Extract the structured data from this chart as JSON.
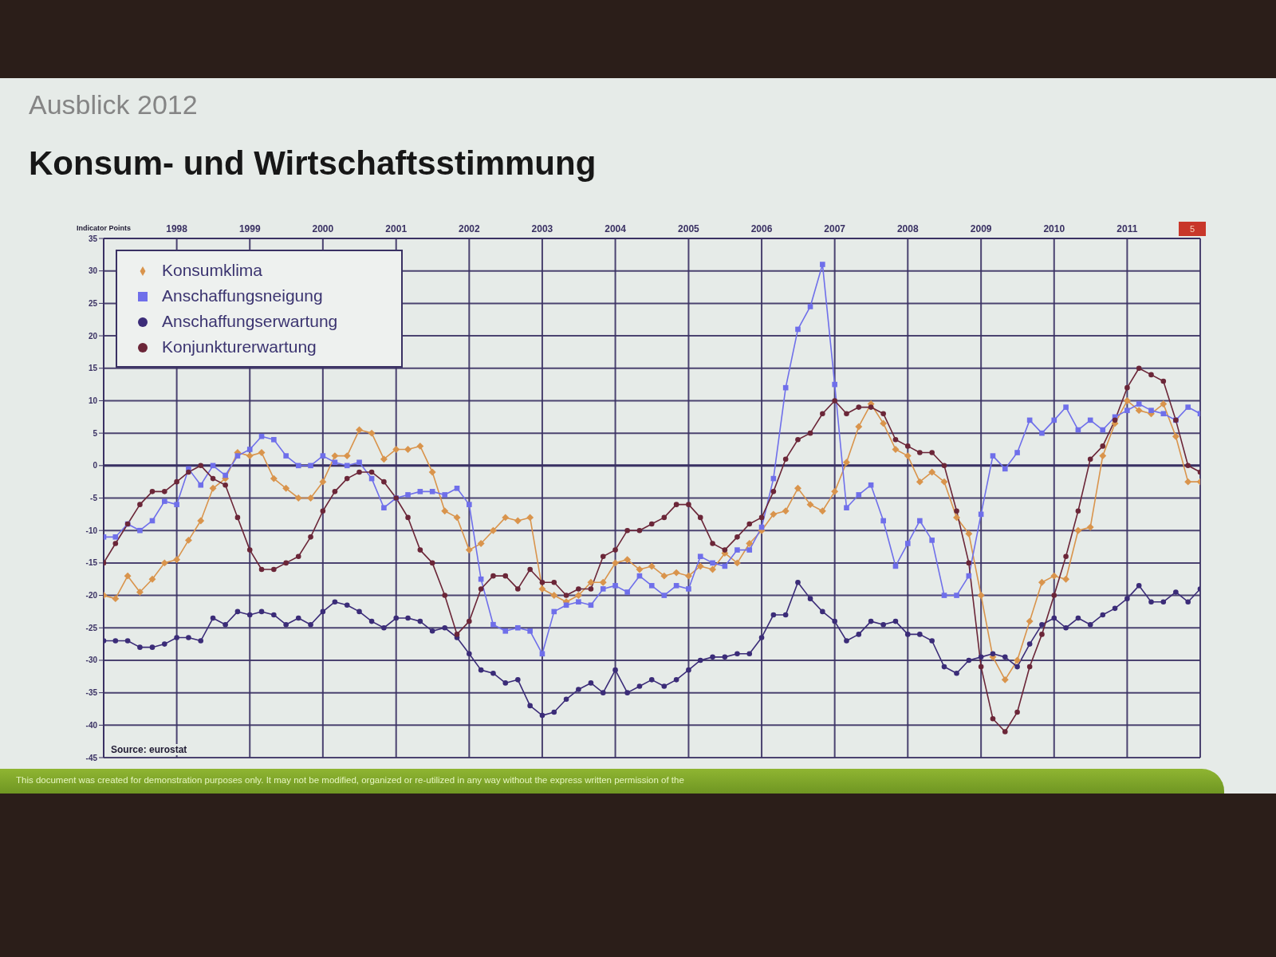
{
  "chart_data": {
    "type": "line",
    "title": "Konsum- und Wirtschaftsstimmung",
    "subtitle": "Ausblick 2012",
    "ylabel": "Indicator Points",
    "x": [
      "1997-01",
      "1997-03",
      "1997-05",
      "1997-07",
      "1997-09",
      "1997-11",
      "1998-01",
      "1998-03",
      "1998-05",
      "1998-07",
      "1998-09",
      "1998-11",
      "1999-01",
      "1999-03",
      "1999-05",
      "1999-07",
      "1999-09",
      "1999-11",
      "2000-01",
      "2000-03",
      "2000-05",
      "2000-07",
      "2000-09",
      "2000-11",
      "2001-01",
      "2001-03",
      "2001-05",
      "2001-07",
      "2001-09",
      "2001-11",
      "2002-01",
      "2002-03",
      "2002-05",
      "2002-07",
      "2002-09",
      "2002-11",
      "2003-01",
      "2003-03",
      "2003-05",
      "2003-07",
      "2003-09",
      "2003-11",
      "2004-01",
      "2004-03",
      "2004-05",
      "2004-07",
      "2004-09",
      "2004-11",
      "2005-01",
      "2005-03",
      "2005-05",
      "2005-07",
      "2005-09",
      "2005-11",
      "2006-01",
      "2006-03",
      "2006-05",
      "2006-07",
      "2006-09",
      "2006-11",
      "2007-01",
      "2007-03",
      "2007-05",
      "2007-07",
      "2007-09",
      "2007-11",
      "2008-01",
      "2008-03",
      "2008-05",
      "2008-07",
      "2008-09",
      "2008-11",
      "2009-01",
      "2009-03",
      "2009-05",
      "2009-07",
      "2009-09",
      "2009-11",
      "2010-01",
      "2010-03",
      "2010-05",
      "2010-07",
      "2010-09",
      "2010-11",
      "2011-01",
      "2011-03",
      "2011-05",
      "2011-07",
      "2011-09",
      "2011-11",
      "2012-01"
    ],
    "series": [
      {
        "name": "Konsumklima",
        "color": "#d9944c",
        "marker": "diamond",
        "values": [
          -20,
          -20.5,
          -17,
          -19.5,
          -17.5,
          -15,
          -14.5,
          -11.5,
          -8.5,
          -3.5,
          -2,
          2,
          1.5,
          2,
          -2,
          -3.5,
          -5,
          -5,
          -2.5,
          1.5,
          1.5,
          5.5,
          5,
          1,
          2.5,
          2.5,
          3,
          -1,
          -7,
          -8,
          -13,
          -12,
          -10,
          -8,
          -8.5,
          -8,
          -19,
          -20,
          -21,
          -20,
          -18,
          -18,
          -15,
          -14.5,
          -16,
          -15.5,
          -17,
          -16.5,
          -17,
          -15.5,
          -16,
          -13.5,
          -15,
          -12,
          -10,
          -7.5,
          -7,
          -3.5,
          -6,
          -7,
          -4,
          0.5,
          6,
          9.5,
          6.5,
          2.5,
          1.5,
          -2.5,
          -1,
          -2.5,
          -8,
          -10.5,
          -20,
          -29.5,
          -33,
          -30,
          -24,
          -18,
          -17,
          -17.5,
          -10,
          -9.5,
          1.5,
          6.5,
          10,
          8.5,
          8,
          9.5,
          4.5,
          -2.5,
          -2.5
        ]
      },
      {
        "name": "Anschaffungsneigung",
        "color": "#6f6fea",
        "marker": "square",
        "values": [
          -11,
          -11,
          -9,
          -10,
          -8.5,
          -5.5,
          -6,
          -0.5,
          -3,
          0,
          -1.5,
          1.5,
          2.5,
          4.5,
          4,
          1.5,
          0,
          0,
          1.5,
          0.5,
          0,
          0.5,
          -2,
          -6.5,
          -5,
          -4.5,
          -4,
          -4,
          -4.5,
          -3.5,
          -6,
          -17.5,
          -24.5,
          -25.5,
          -25,
          -25.5,
          -29,
          -22.5,
          -21.5,
          -21,
          -21.5,
          -19,
          -18.5,
          -19.5,
          -17,
          -18.5,
          -20,
          -18.5,
          -19,
          -14,
          -15,
          -15.5,
          -13,
          -13,
          -9.5,
          -2,
          12,
          21,
          24.5,
          31,
          12.5,
          -6.5,
          -4.5,
          -3,
          -8.5,
          -15.5,
          -12,
          -8.5,
          -11.5,
          -20,
          -20,
          -17,
          -7.5,
          1.5,
          -0.5,
          2,
          7,
          5,
          7,
          9,
          5.5,
          7,
          5.5,
          7.5,
          8.5,
          9.5,
          8.5,
          8,
          7,
          9,
          8
        ]
      },
      {
        "name": "Anschaffungserwartung",
        "color": "#3b2c78",
        "marker": "circle",
        "values": [
          -27,
          -27,
          -27,
          -28,
          -28,
          -27.5,
          -26.5,
          -26.5,
          -27,
          -23.5,
          -24.5,
          -22.5,
          -23,
          -22.5,
          -23,
          -24.5,
          -23.5,
          -24.5,
          -22.5,
          -21,
          -21.5,
          -22.5,
          -24,
          -25,
          -23.5,
          -23.5,
          -24,
          -25.5,
          -25,
          -26.5,
          -29,
          -31.5,
          -32,
          -33.5,
          -33,
          -37,
          -38.5,
          -38,
          -36,
          -34.5,
          -33.5,
          -35,
          -31.5,
          -35,
          -34,
          -33,
          -34,
          -33,
          -31.5,
          -30,
          -29.5,
          -29.5,
          -29,
          -29,
          -26.5,
          -23,
          -23,
          -18,
          -20.5,
          -22.5,
          -24,
          -27,
          -26,
          -24,
          -24.5,
          -24,
          -26,
          -26,
          -27,
          -31,
          -32,
          -30,
          -29.5,
          -29,
          -29.5,
          -31,
          -27.5,
          -24.5,
          -23.5,
          -25,
          -23.5,
          -24.5,
          -23,
          -22,
          -20.5,
          -18.5,
          -21,
          -21,
          -19.5,
          -21,
          -19
        ]
      },
      {
        "name": "Konjunkturerwartung",
        "color": "#6b2638",
        "marker": "circle",
        "values": [
          -15,
          -12,
          -9,
          -6,
          -4,
          -4,
          -2.5,
          -1,
          0,
          -2,
          -3,
          -8,
          -13,
          -16,
          -16,
          -15,
          -14,
          -11,
          -7,
          -4,
          -2,
          -1,
          -1,
          -2.5,
          -5,
          -8,
          -13,
          -15,
          -20,
          -26,
          -24,
          -19,
          -17,
          -17,
          -19,
          -16,
          -18,
          -18,
          -20,
          -19,
          -19,
          -14,
          -13,
          -10,
          -10,
          -9,
          -8,
          -6,
          -6,
          -8,
          -12,
          -13,
          -11,
          -9,
          -8,
          -4,
          1,
          4,
          5,
          8,
          10,
          8,
          9,
          9,
          8,
          4,
          3,
          2,
          2,
          0,
          -7,
          -15,
          -31,
          -39,
          -41,
          -38,
          -31,
          -26,
          -20,
          -14,
          -7,
          1,
          3,
          7,
          12,
          15,
          14,
          13,
          7,
          0,
          -1
        ]
      }
    ],
    "xlim": [
      "1997-01",
      "2012-01"
    ],
    "xticks": [
      "1998",
      "1999",
      "2000",
      "2001",
      "2002",
      "2003",
      "2004",
      "2005",
      "2006",
      "2007",
      "2008",
      "2009",
      "2010",
      "2011"
    ],
    "ylim": [
      -45,
      35
    ],
    "yticks": [
      -45,
      -40,
      -35,
      -30,
      -25,
      -20,
      -15,
      -10,
      -5,
      0,
      5,
      10,
      15,
      20,
      25,
      30,
      35
    ],
    "grid": true,
    "legend": "top left",
    "ref_lines": [
      {
        "axis": "y",
        "value": 0
      }
    ],
    "annotations": [
      "Source: eurostat",
      "This document was created for demonstration purposes only.  It may not be modified, organized or re-utilized in any way without the express written permission of the",
      "5"
    ]
  }
}
